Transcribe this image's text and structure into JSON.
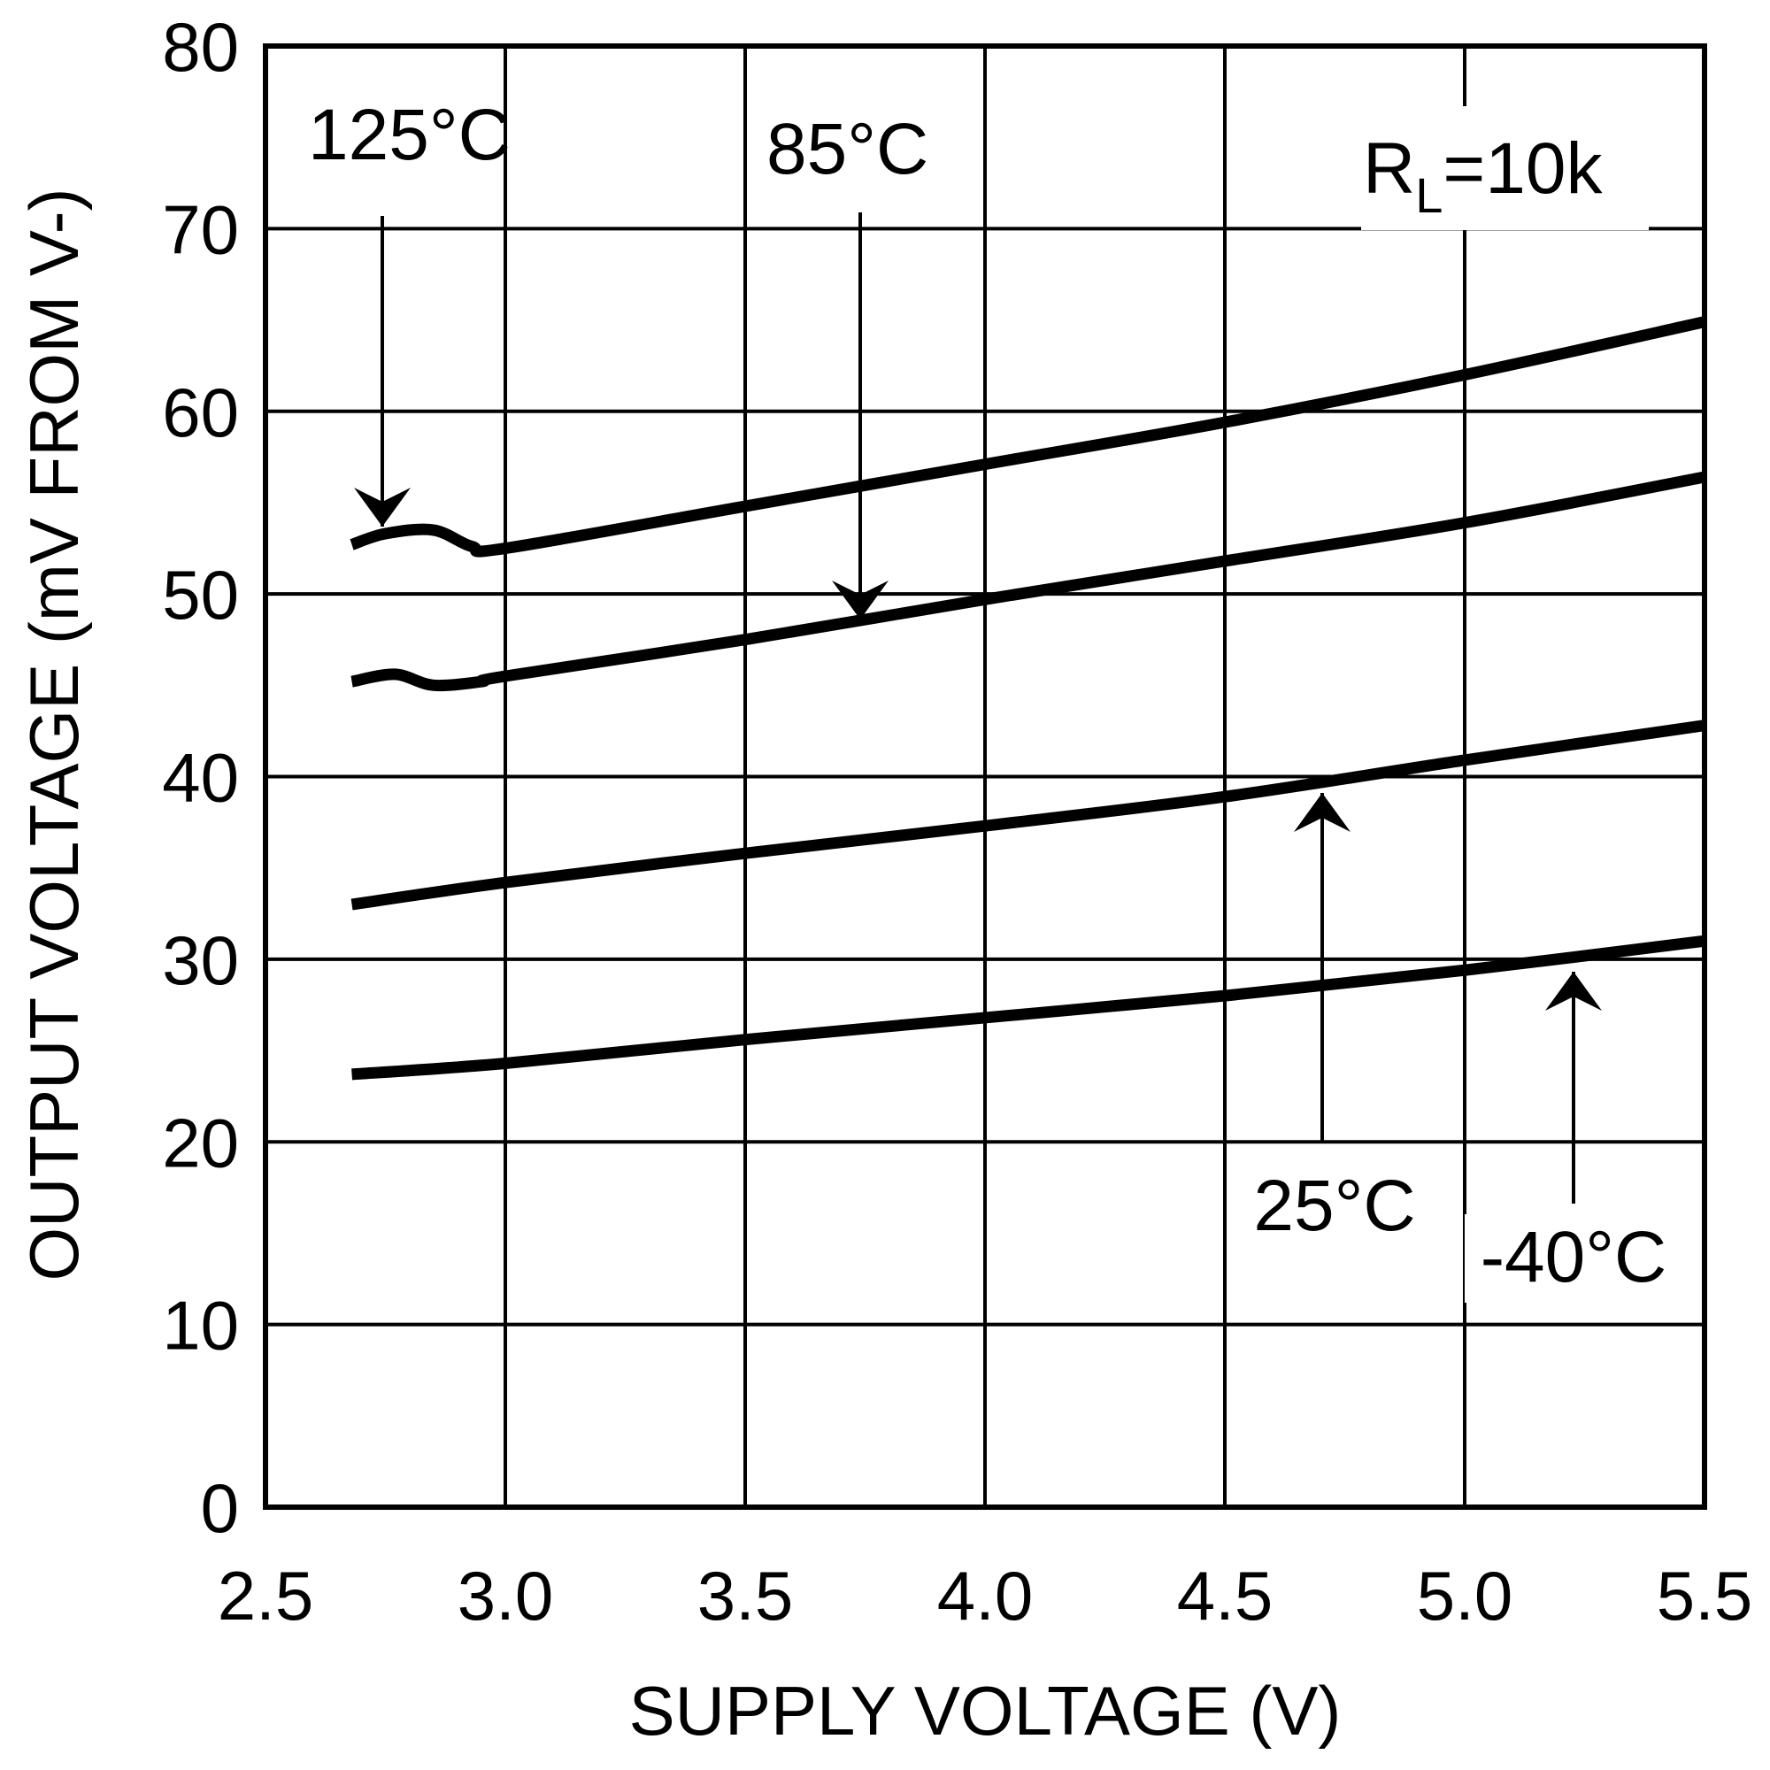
{
  "chart_data": {
    "type": "line",
    "title": "",
    "xlabel": "SUPPLY VOLTAGE (V)",
    "ylabel": "OUTPUT VOLTAGE (mV FROM V-)",
    "xlim": [
      2.5,
      5.5
    ],
    "ylim": [
      0,
      80
    ],
    "xticks": [
      "2.5",
      "3.0",
      "3.5",
      "4.0",
      "4.5",
      "5.0",
      "5.5"
    ],
    "yticks": [
      "0",
      "10",
      "20",
      "30",
      "40",
      "50",
      "60",
      "70",
      "80"
    ],
    "grid": true,
    "legend": "none",
    "note": {
      "prefix": "R",
      "subscript": "L",
      "suffix": "=10k"
    },
    "series": [
      {
        "name": "125°C",
        "x": [
          2.68,
          2.75,
          2.85,
          2.93,
          3.0,
          3.5,
          4.0,
          4.5,
          5.0,
          5.5
        ],
        "y": [
          52.7,
          53.3,
          53.5,
          52.6,
          52.5,
          54.8,
          57.1,
          59.4,
          62.0,
          64.9
        ]
      },
      {
        "name": "85°C",
        "x": [
          2.68,
          2.77,
          2.85,
          2.95,
          3.0,
          3.5,
          4.0,
          4.5,
          5.0,
          5.5
        ],
        "y": [
          45.2,
          45.6,
          45.0,
          45.2,
          45.5,
          47.5,
          49.7,
          51.8,
          53.9,
          56.4
        ]
      },
      {
        "name": "25°C",
        "x": [
          2.68,
          3.0,
          3.5,
          4.0,
          4.5,
          5.0,
          5.5
        ],
        "y": [
          33.0,
          34.2,
          35.8,
          37.3,
          38.9,
          40.9,
          42.8
        ]
      },
      {
        "name": "-40°C",
        "x": [
          2.68,
          3.0,
          3.5,
          4.0,
          4.5,
          5.0,
          5.5
        ],
        "y": [
          23.7,
          24.3,
          25.6,
          26.8,
          28.0,
          29.4,
          31.0
        ]
      }
    ],
    "annotations": [
      {
        "text": "125°C",
        "series": "125°C"
      },
      {
        "text": "85°C",
        "series": "85°C"
      },
      {
        "text": "25°C",
        "series": "25°C"
      },
      {
        "text": "-40°C",
        "series": "-40°C"
      }
    ]
  }
}
